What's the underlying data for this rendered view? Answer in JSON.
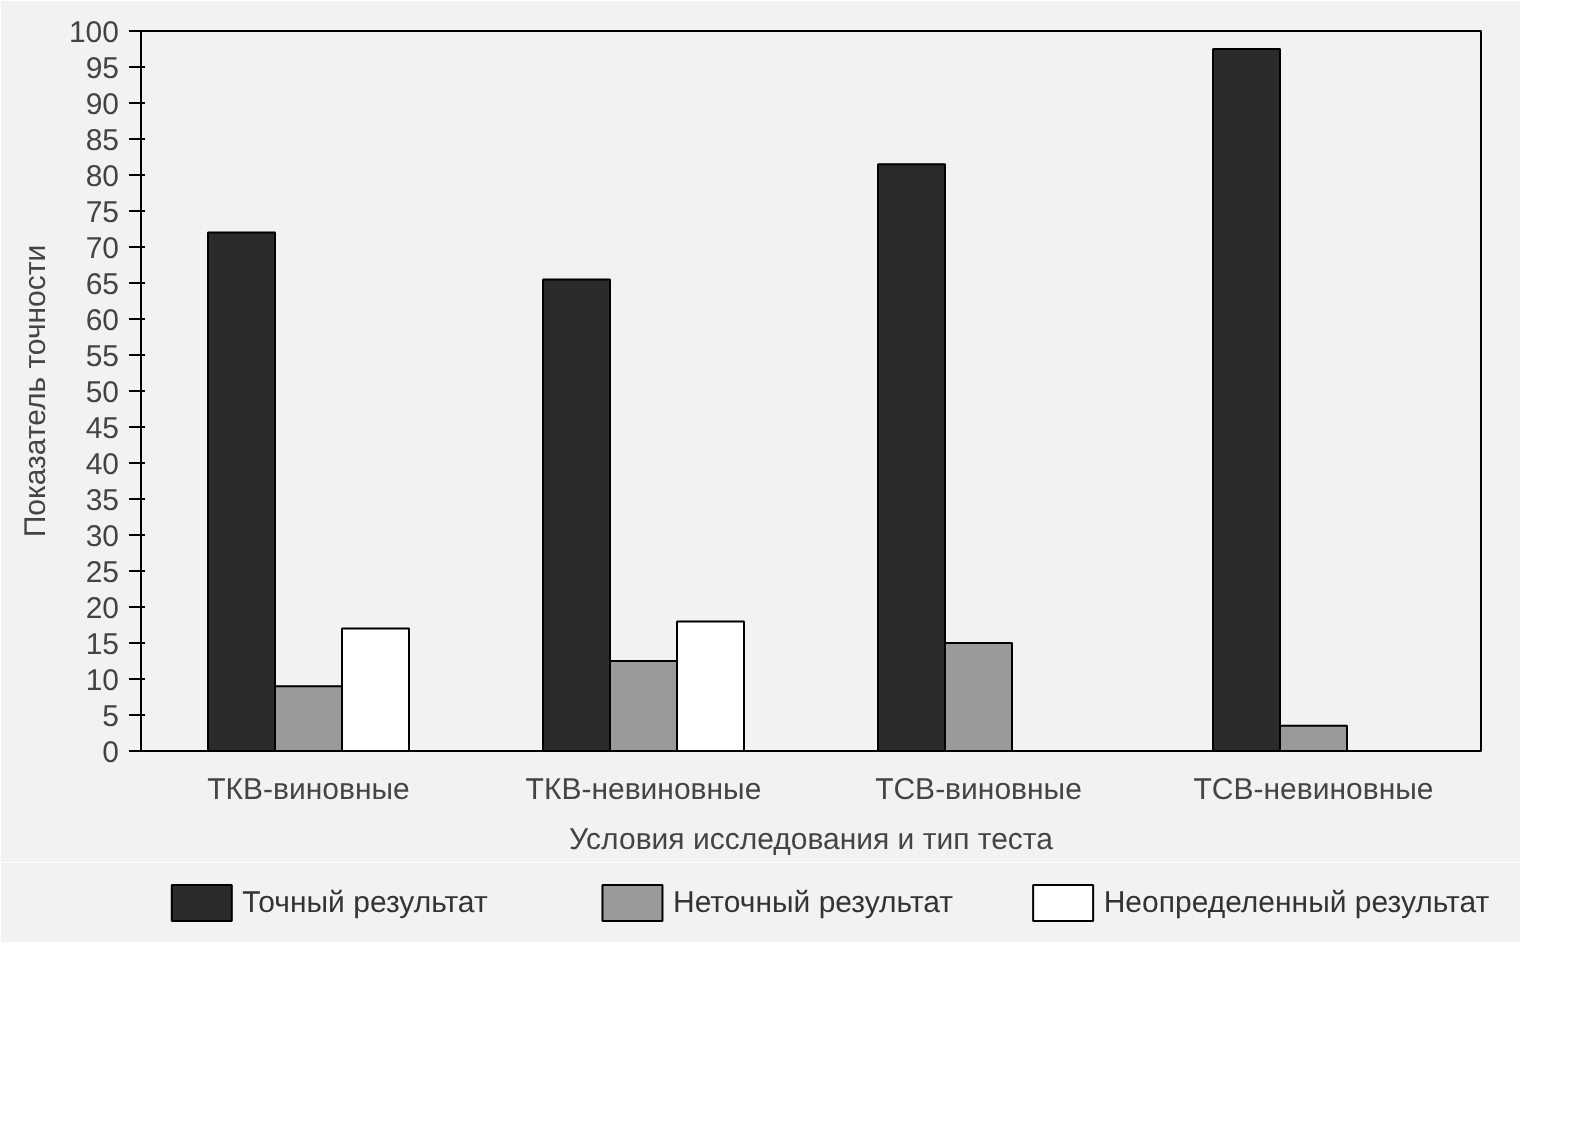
{
  "chart_data": {
    "type": "bar",
    "xlabel": "Условия исследования и тип теста",
    "ylabel": "Показатель точности",
    "categories": [
      "ТКВ-виновные",
      "ТКВ-невиновные",
      "ТСВ-виновные",
      "ТСВ-невиновные"
    ],
    "series": [
      {
        "name": "Точный результат",
        "color": "#2b2b2b",
        "values": [
          72,
          65.5,
          81.5,
          97.5
        ]
      },
      {
        "name": "Неточный результат",
        "color": "#9a9a9a",
        "values": [
          9,
          12.5,
          15,
          3.5
        ]
      },
      {
        "name": "Неопределенный результат",
        "color": "#ffffff",
        "values": [
          17,
          18,
          null,
          null
        ]
      }
    ],
    "ylim": [
      0,
      100
    ],
    "yticks": [
      0,
      5,
      10,
      15,
      20,
      25,
      30,
      35,
      40,
      45,
      50,
      55,
      60,
      65,
      70,
      75,
      80,
      85,
      90,
      95,
      100
    ],
    "grid": false,
    "legend": "bottom"
  }
}
